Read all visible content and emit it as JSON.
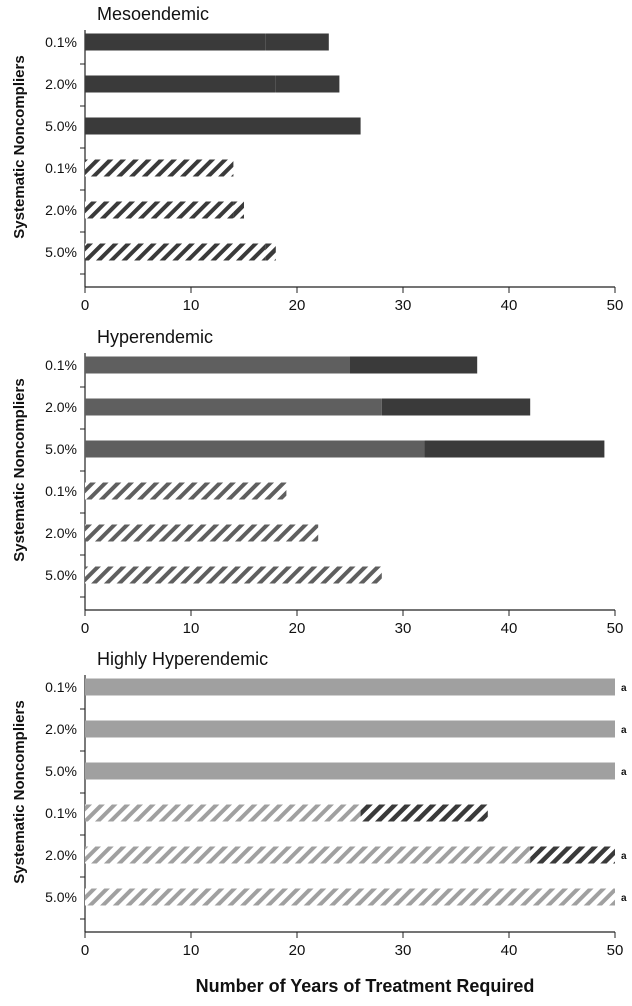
{
  "chart_data": [
    {
      "type": "bar",
      "orientation": "horizontal",
      "stacked": true,
      "title": "Mesoendemic",
      "ylabel": "Systematic Noncompliers",
      "xlabel": "",
      "xlim": [
        0,
        50
      ],
      "xticks": [
        0,
        10,
        20,
        30,
        40,
        50
      ],
      "categories": [
        "0.1%",
        "2.0%",
        "5.0%",
        "0.1%",
        "2.0%",
        "5.0%"
      ],
      "series": [
        {
          "values": [
            17,
            18,
            20,
            14,
            14,
            17
          ]
        },
        {
          "values": [
            6,
            6,
            6,
            0,
            1,
            1
          ]
        }
      ],
      "bar_fills": [
        "solid",
        "solid",
        "solid",
        "hatched",
        "hatched",
        "hatched"
      ],
      "annotations": [
        "",
        "",
        "",
        "",
        "",
        ""
      ]
    },
    {
      "type": "bar",
      "orientation": "horizontal",
      "stacked": true,
      "title": "Hyperendemic",
      "ylabel": "Systematic Noncompliers",
      "xlabel": "",
      "xlim": [
        0,
        50
      ],
      "xticks": [
        0,
        10,
        20,
        30,
        40,
        50
      ],
      "categories": [
        "0.1%",
        "2.0%",
        "5.0%",
        "0.1%",
        "2.0%",
        "5.0%"
      ],
      "series": [
        {
          "values": [
            25,
            28,
            32,
            19,
            22,
            28
          ]
        },
        {
          "values": [
            12,
            14,
            17,
            0,
            0,
            0
          ]
        }
      ],
      "bar_fills": [
        "solid",
        "solid",
        "solid",
        "hatched",
        "hatched",
        "hatched"
      ],
      "annotations": [
        "",
        "",
        "",
        "",
        "",
        ""
      ]
    },
    {
      "type": "bar",
      "orientation": "horizontal",
      "stacked": true,
      "title": "Highly Hyperendemic",
      "ylabel": "Systematic Noncompliers",
      "xlabel": "Number of Years of Treatment Required",
      "xlim": [
        0,
        50
      ],
      "xticks": [
        0,
        10,
        20,
        30,
        40,
        50
      ],
      "categories": [
        "0.1%",
        "2.0%",
        "5.0%",
        "0.1%",
        "2.0%",
        "5.0%"
      ],
      "series": [
        {
          "values": [
            50,
            50,
            50,
            26,
            42,
            50
          ]
        },
        {
          "values": [
            0,
            0,
            0,
            12,
            8,
            0
          ]
        }
      ],
      "bar_fills": [
        "solid",
        "solid",
        "solid",
        "hatched",
        "hatched",
        "hatched"
      ],
      "annotations": [
        "a",
        "a",
        "a",
        "",
        "a",
        "a"
      ]
    }
  ],
  "colors": {
    "mesoendemic": [
      "#3a3a3a",
      "#3a3a3a"
    ],
    "hyperendemic": [
      "#5f5f5f",
      "#3a3a3a"
    ],
    "highly_hyperendemic": [
      "#a0a0a0",
      "#3a3a3a"
    ],
    "axis": "#222222"
  }
}
